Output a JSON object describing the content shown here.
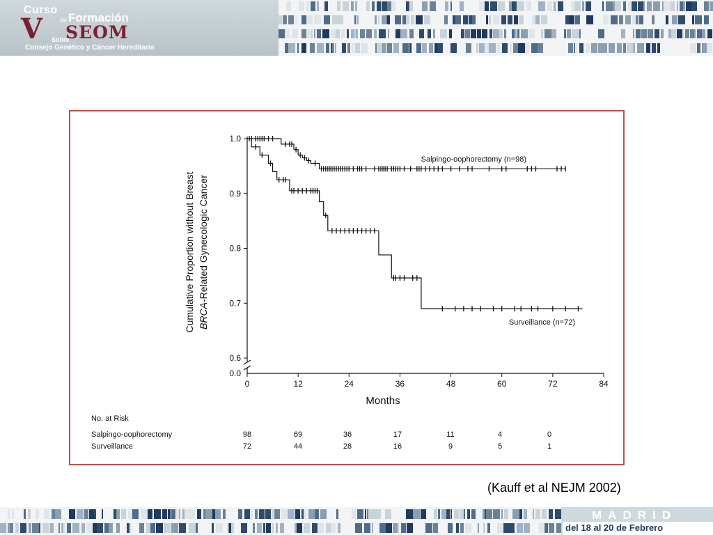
{
  "header": {
    "logo_curso": "Curso",
    "logo_de": "de",
    "logo_formacion": "Formación",
    "logo_v": "V",
    "logo_seom": "SEOM",
    "logo_sobre": "Sobre",
    "logo_subtitle": "Consejo Genético y Cáncer Hereditario"
  },
  "colors": {
    "frame_border": "#c0504d",
    "logo_accent": "#7a2030",
    "footer_text": "#1f3a5f"
  },
  "chart_data": {
    "type": "line",
    "subtype": "kaplan-meier",
    "ylabel_line1": "Cumulative Proportion without Breast",
    "ylabel_line2_italic": "BRCA",
    "ylabel_line2_rest": "-Related Gynecologic Cancer",
    "xlabel": "Months",
    "x_ticks": [
      0,
      12,
      24,
      36,
      48,
      60,
      72,
      84
    ],
    "y_ticks": [
      1.0,
      0.9,
      0.8,
      0.7,
      0.6
    ],
    "y_tick_labels": [
      "1.0",
      "0.9",
      "0.8",
      "0.7",
      "0.6"
    ],
    "y_zero_label": "0.0",
    "xlim": [
      0,
      84
    ],
    "ylim": [
      0.6,
      1.0
    ],
    "axis_break": true,
    "series": [
      {
        "name": "Salpingo-oophorectomy (n=98)",
        "steps": [
          [
            0,
            1.0
          ],
          [
            8,
            0.99
          ],
          [
            11,
            0.98
          ],
          [
            12,
            0.97
          ],
          [
            13,
            0.965
          ],
          [
            14,
            0.96
          ],
          [
            15,
            0.955
          ],
          [
            17,
            0.945
          ],
          [
            75,
            0.945
          ]
        ],
        "censors": [
          1,
          2,
          2.5,
          3,
          3.5,
          4,
          5,
          6,
          9,
          10,
          10.5,
          11.5,
          12.5,
          13.5,
          14.5,
          16,
          17.5,
          18,
          18.5,
          19,
          19.5,
          20,
          20.5,
          21,
          21.5,
          22,
          22.5,
          23,
          23.5,
          24,
          25,
          26,
          26.5,
          27,
          28,
          30,
          31,
          31.5,
          32,
          32.5,
          33,
          34,
          34.5,
          35,
          35.5,
          36,
          37,
          38.5,
          40,
          40.5,
          41,
          42,
          43,
          44,
          45,
          46,
          48,
          50,
          52,
          53,
          57,
          60,
          61,
          66,
          67,
          68,
          73,
          74,
          75
        ]
      },
      {
        "name": "Surveillance (n=72)",
        "steps": [
          [
            0,
            1.0
          ],
          [
            1,
            0.985
          ],
          [
            3,
            0.97
          ],
          [
            5,
            0.955
          ],
          [
            6,
            0.94
          ],
          [
            7,
            0.925
          ],
          [
            10,
            0.905
          ],
          [
            17,
            0.885
          ],
          [
            18,
            0.86
          ],
          [
            19,
            0.832
          ],
          [
            31,
            0.788
          ],
          [
            34,
            0.746
          ],
          [
            41,
            0.69
          ],
          [
            79,
            0.69
          ]
        ],
        "censors": [
          0.5,
          2,
          3.5,
          5.5,
          7.5,
          8.5,
          9,
          10.5,
          11,
          12,
          13,
          14,
          15,
          15.5,
          16,
          16.5,
          18.5,
          20,
          21,
          22,
          23,
          24,
          25,
          26,
          27,
          28,
          29,
          30,
          34.5,
          35,
          36,
          37,
          39,
          40,
          46,
          49,
          51,
          53,
          55,
          58,
          60,
          63,
          64.5,
          67,
          68.5,
          72,
          75,
          78
        ]
      }
    ],
    "series_labels": [
      "Salpingo-oophorectomy (n=98)",
      "Surveillance (n=72)"
    ],
    "risk_table": {
      "title": "No. at Risk",
      "rows": [
        {
          "label": "Salpingo-oophorectomy",
          "values": [
            "98",
            "69",
            "36",
            "17",
            "11",
            "4",
            "0"
          ]
        },
        {
          "label": "Surveillance",
          "values": [
            "72",
            "44",
            "28",
            "16",
            "9",
            "5",
            "1"
          ]
        }
      ]
    }
  },
  "citation": "(Kauff et al NEJM 2002)",
  "footer": {
    "city": "MADRID",
    "dates": "del 18 al 20 de Febrero"
  }
}
